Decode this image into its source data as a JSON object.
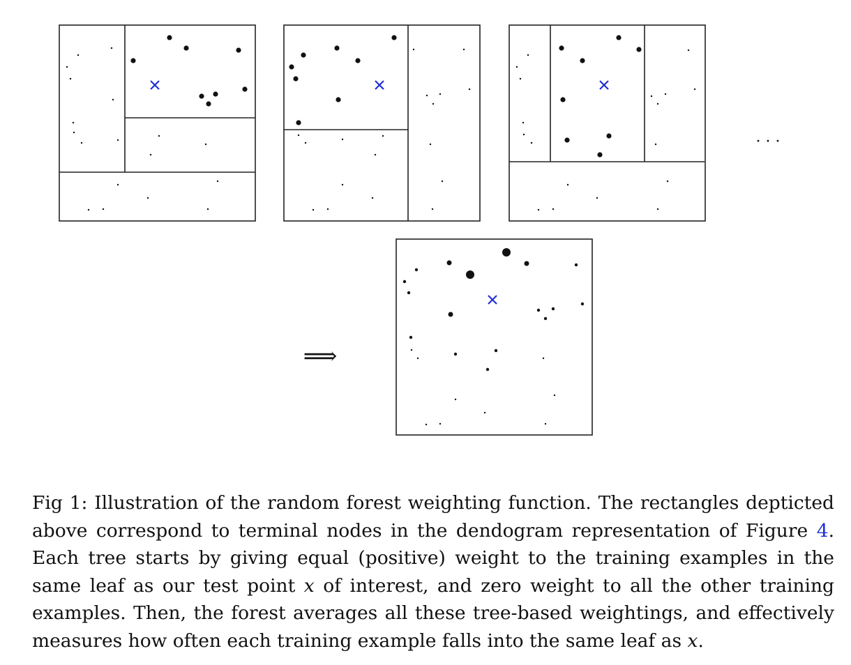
{
  "figure": {
    "ellipsis": "· · ·",
    "arrow": "⟹",
    "cross_color": "#1f2fd6",
    "panels": [
      {
        "name": "tree-1",
        "splits": [
          [
            179,
            36,
            179,
            247
          ],
          [
            179,
            169,
            366,
            169
          ],
          [
            85,
            247,
            366,
            247
          ]
        ],
        "big": [
          [
            243,
            54
          ],
          [
            267,
            69
          ],
          [
            342,
            72
          ],
          [
            191,
            87
          ],
          [
            289,
            138
          ],
          [
            309,
            135
          ],
          [
            299,
            149
          ],
          [
            351,
            128
          ]
        ],
        "small": [
          [
            112,
            79
          ],
          [
            160,
            69
          ],
          [
            96,
            96
          ],
          [
            101,
            113
          ],
          [
            162,
            143
          ],
          [
            105,
            176
          ],
          [
            106,
            190
          ],
          [
            117,
            205
          ],
          [
            169,
            201
          ],
          [
            228,
            195
          ],
          [
            295,
            207
          ],
          [
            216,
            222
          ],
          [
            169,
            265
          ],
          [
            312,
            260
          ],
          [
            212,
            284
          ],
          [
            127,
            301
          ],
          [
            148,
            300
          ],
          [
            298,
            300
          ]
        ],
        "cross": [
          222,
          122
        ]
      },
      {
        "name": "tree-2",
        "splits": [
          [
            585,
            36,
            585,
            317
          ],
          [
            407,
            186,
            585,
            186
          ]
        ],
        "big": [
          [
            565,
            54
          ],
          [
            483,
            69
          ],
          [
            435,
            79
          ],
          [
            513,
            87
          ],
          [
            418,
            96
          ],
          [
            424,
            113
          ],
          [
            485,
            143
          ],
          [
            428,
            176
          ]
        ],
        "small": [
          [
            593,
            71
          ],
          [
            665,
            71
          ],
          [
            673,
            128
          ],
          [
            612,
            137
          ],
          [
            631,
            135
          ],
          [
            621,
            149
          ],
          [
            428,
            194
          ],
          [
            438,
            205
          ],
          [
            491,
            200
          ],
          [
            549,
            195
          ],
          [
            538,
            222
          ],
          [
            617,
            207
          ],
          [
            491,
            265
          ],
          [
            634,
            260
          ],
          [
            534,
            284
          ],
          [
            449,
            301
          ],
          [
            470,
            300
          ],
          [
            620,
            300
          ]
        ],
        "cross": [
          544,
          122
        ]
      },
      {
        "name": "tree-3",
        "splits": [
          [
            789,
            36,
            789,
            232
          ],
          [
            924,
            36,
            924,
            232
          ],
          [
            730,
            232,
            1010,
            232
          ]
        ],
        "big": [
          [
            887,
            54
          ],
          [
            916,
            71
          ],
          [
            805,
            69
          ],
          [
            835,
            87
          ],
          [
            807,
            143
          ],
          [
            873,
            195
          ],
          [
            813,
            201
          ],
          [
            860,
            222
          ]
        ],
        "small": [
          [
            757,
            79
          ],
          [
            741,
            96
          ],
          [
            746,
            113
          ],
          [
            987,
            72
          ],
          [
            996,
            128
          ],
          [
            934,
            138
          ],
          [
            954,
            135
          ],
          [
            943,
            149
          ],
          [
            750,
            176
          ],
          [
            751,
            193
          ],
          [
            762,
            205
          ],
          [
            940,
            207
          ],
          [
            814,
            265
          ],
          [
            957,
            260
          ],
          [
            856,
            284
          ],
          [
            772,
            301
          ],
          [
            793,
            300
          ],
          [
            943,
            300
          ]
        ],
        "cross": [
          866,
          122
        ]
      }
    ],
    "forest": {
      "name": "forest",
      "points": [
        [
          726,
          362,
          6
        ],
        [
          674,
          394,
          6
        ],
        [
          644,
          377,
          3.5
        ],
        [
          755,
          378,
          3.5
        ],
        [
          646,
          451,
          3.5
        ],
        [
          597,
          387,
          2.2
        ],
        [
          580,
          404,
          2.2
        ],
        [
          586,
          420,
          2.2
        ],
        [
          826,
          380,
          2.2
        ],
        [
          835,
          436,
          2.2
        ],
        [
          772,
          445,
          2.2
        ],
        [
          793,
          443,
          2.2
        ],
        [
          782,
          457,
          2.2
        ],
        [
          589,
          484,
          2.2
        ],
        [
          653,
          508,
          2.2
        ],
        [
          711,
          503,
          2.2
        ],
        [
          699,
          530,
          2.2
        ],
        [
          590,
          502,
          1.2
        ],
        [
          599,
          514,
          1.2
        ],
        [
          779,
          514,
          1.2
        ],
        [
          653,
          573,
          1.2
        ],
        [
          795,
          567,
          1.2
        ],
        [
          695,
          592,
          1.2
        ],
        [
          611,
          609,
          1.2
        ],
        [
          631,
          608,
          1.2
        ],
        [
          782,
          608,
          1.2
        ]
      ],
      "cross": [
        706,
        430
      ]
    }
  },
  "caption": {
    "part1": "Fig 1: Illustration of the random forest weighting function. The rectangles deptict",
    "part2": "ed above correspond to terminal nodes in the dendogram representation of Figure ",
    "ref": "4",
    "part3": ". Each tree starts by giving equal (positive) weight to the training examples in the same leaf as our test point ",
    "var1": "x",
    "part4": " of interest, and zero weight to all the other training examples. Then, the forest averages all these tree-based weightings, and effectively measures how often each training example falls into the same leaf as ",
    "var2": "x",
    "part5": "."
  }
}
